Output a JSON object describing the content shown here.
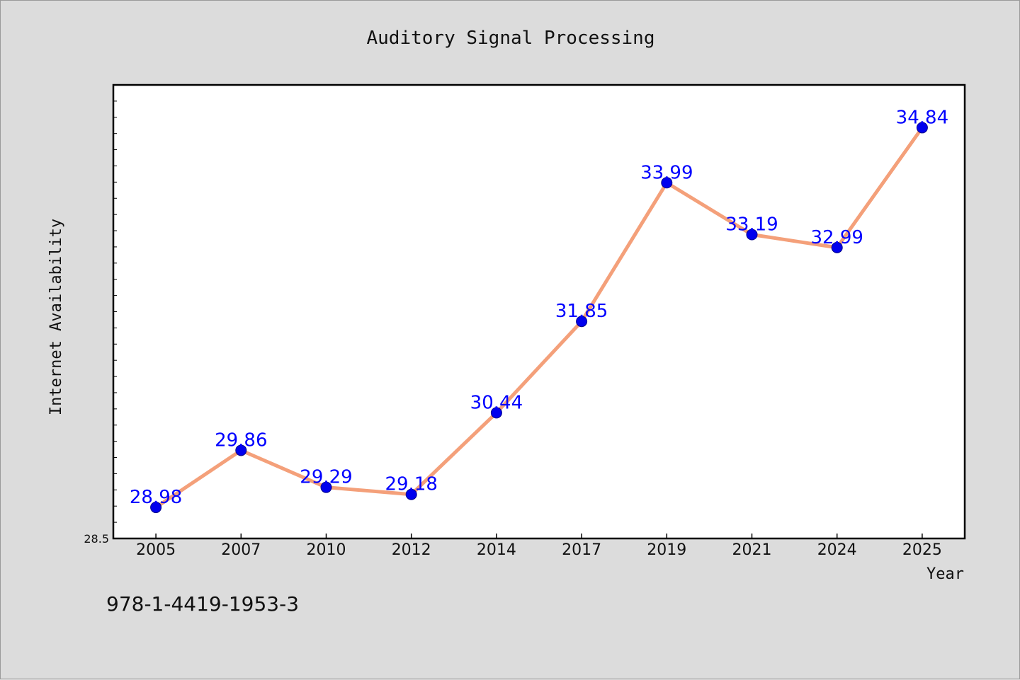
{
  "footer_text": "978-1-4419-1953-3",
  "chart_data": {
    "type": "line",
    "title": "Auditory Signal Processing",
    "xlabel": "Year",
    "ylabel": "Internet Availability",
    "categories": [
      "2005",
      "2007",
      "2010",
      "2012",
      "2014",
      "2017",
      "2019",
      "2021",
      "2024",
      "2025"
    ],
    "series": [
      {
        "values": [
          28.98,
          29.86,
          29.29,
          29.18,
          30.44,
          31.85,
          33.99,
          33.19,
          32.99,
          34.84
        ]
      }
    ],
    "data_labels": [
      "28.98",
      "29.86",
      "29.29",
      "29.18",
      "30.44",
      "31.85",
      "33.99",
      "33.19",
      "32.99",
      "34.84"
    ],
    "ylim": [
      28.5,
      35.5
    ],
    "ytick_labels": [
      "28.5"
    ],
    "grid": false,
    "colors": {
      "line": "#f4a07a",
      "marker": "#0000ee",
      "marker_edge": "#00008b",
      "label": "#0000ff"
    }
  }
}
